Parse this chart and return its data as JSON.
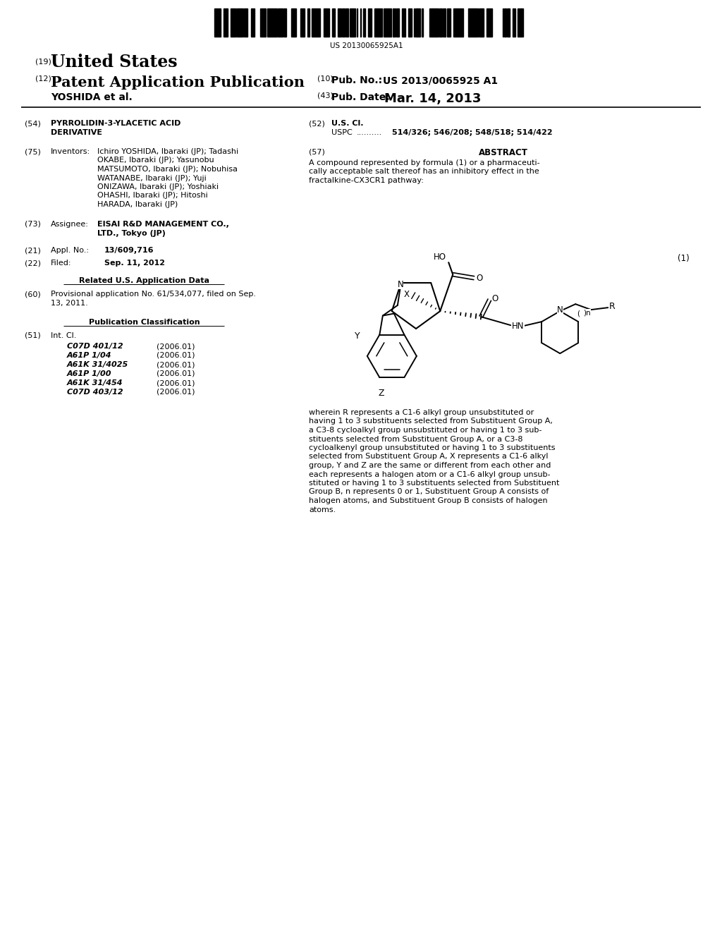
{
  "bg_color": "#ffffff",
  "barcode_text": "US 20130065925A1",
  "header_19_text": "United States",
  "header_12_text": "Patent Application Publication",
  "header_yoshida": "YOSHIDA et al.",
  "header_10_value": "US 2013/0065925 A1",
  "header_43_value": "Mar. 14, 2013",
  "field_54_line1": "PYRROLIDIN-3-YLACETIC ACID",
  "field_54_line2": "DERIVATIVE",
  "field_75_inventors": "Ichiro YOSHIDA, Ibaraki (JP); Tadashi\nOKABE, Ibaraki (JP); Yasunobu\nMATSUMOTO, Ibaraki (JP); Nobuhisa\nWATANABE, Ibaraki (JP); Yuji\nONIZAWA, Ibaraki (JP); Yoshiaki\nOHASHI, Ibaraki (JP); Hitoshi\nHARADA, Ibaraki (JP)",
  "field_73_text": "EISAI R&D MANAGEMENT CO.,\nLTD., Tokyo (JP)",
  "field_21_text": "13/609,716",
  "field_22_text": "Sep. 11, 2012",
  "field_60_text": "Provisional application No. 61/534,077, filed on Sep.\n13, 2011.",
  "int_cl_entries": [
    [
      "C07D 401/12",
      "(2006.01)"
    ],
    [
      "A61P 1/04",
      "(2006.01)"
    ],
    [
      "A61K 31/4025",
      "(2006.01)"
    ],
    [
      "A61P 1/00",
      "(2006.01)"
    ],
    [
      "A61K 31/454",
      "(2006.01)"
    ],
    [
      "C07D 403/12",
      "(2006.01)"
    ]
  ],
  "field_52_uspc": "514/326; 546/208; 548/518; 514/422",
  "abstract_text": "A compound represented by formula (1) or a pharmaceuti-\ncally acceptable salt thereof has an inhibitory effect in the\nfractalkine-CX3CR1 pathway:",
  "abstract_bottom": "wherein R represents a C1-6 alkyl group unsubstituted or\nhaving 1 to 3 substituents selected from Substituent Group A,\na C3-8 cycloalkyl group unsubstituted or having 1 to 3 sub-\nstituents selected from Substituent Group A, or a C3-8\ncycloalkenyl group unsubstituted or having 1 to 3 substituents\nselected from Substituent Group A, X represents a C1-6 alkyl\ngroup, Y and Z are the same or different from each other and\neach represents a halogen atom or a C1-6 alkyl group unsub-\nstituted or having 1 to 3 substituents selected from Substituent\nGroup B, n represents 0 or 1, Substituent Group A consists of\nhalogen atoms, and Substituent Group B consists of halogen\natoms."
}
